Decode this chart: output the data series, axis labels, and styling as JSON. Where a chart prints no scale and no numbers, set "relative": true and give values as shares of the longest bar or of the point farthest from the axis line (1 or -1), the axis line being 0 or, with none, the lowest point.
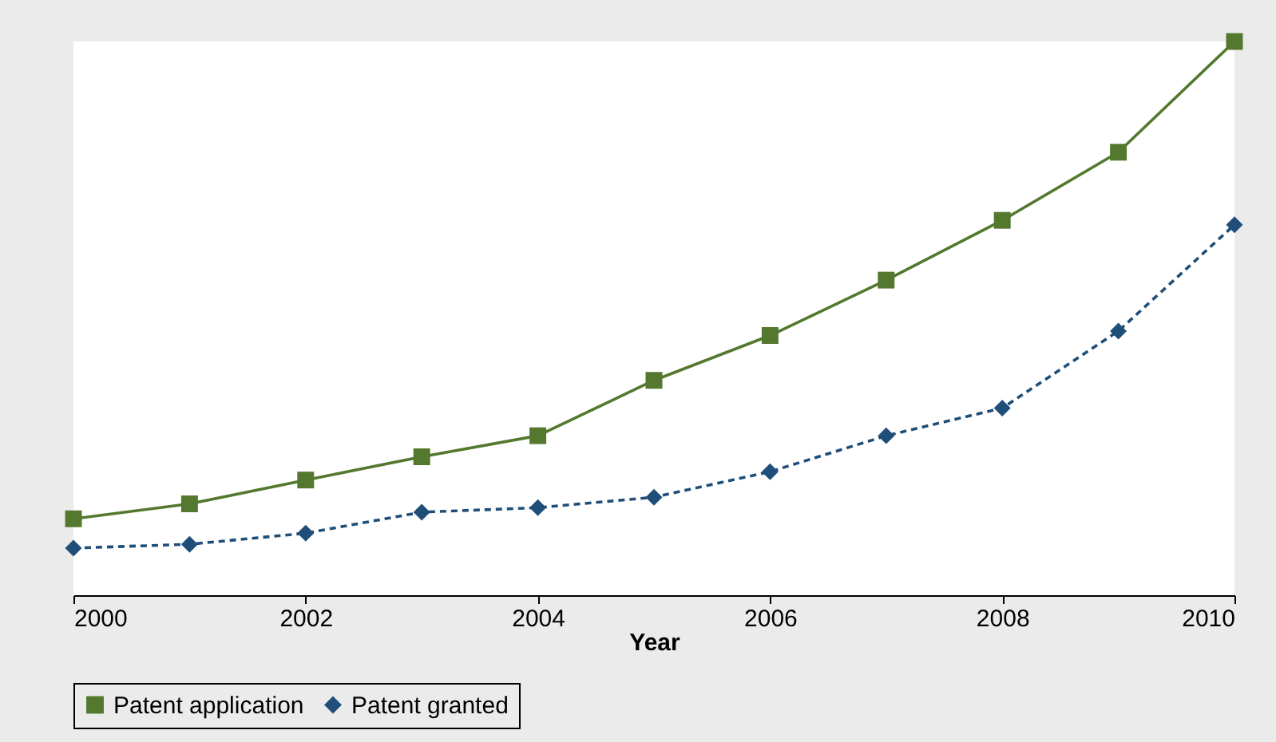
{
  "chart_data": {
    "type": "line",
    "relative": true,
    "xlabel": "Year",
    "xlim": [
      2000,
      2010
    ],
    "xticks": [
      2000,
      2002,
      2004,
      2006,
      2008,
      2010
    ],
    "x": [
      2000,
      2001,
      2002,
      2003,
      2004,
      2005,
      2006,
      2007,
      2008,
      2009,
      2010
    ],
    "series": [
      {
        "name": "Patent application",
        "color": "#55782f",
        "marker": "square",
        "line_style": "solid",
        "values": [
          0.138,
          0.165,
          0.208,
          0.25,
          0.288,
          0.388,
          0.469,
          0.569,
          0.677,
          0.8,
          1
        ]
      },
      {
        "name": "Patent granted",
        "color": "#1f4e79",
        "marker": "diamond",
        "line_style": "dashed",
        "values": [
          0.085,
          0.092,
          0.112,
          0.15,
          0.158,
          0.177,
          0.223,
          0.288,
          0.338,
          0.477,
          0.669
        ]
      }
    ],
    "legend": "bottom"
  }
}
